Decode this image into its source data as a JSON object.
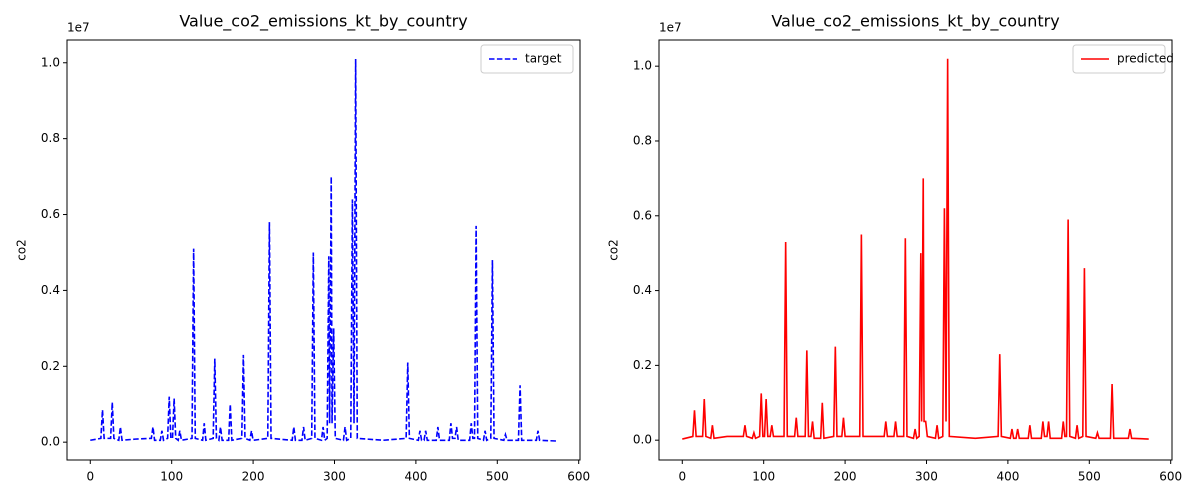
{
  "chart_data": [
    {
      "type": "line",
      "title": "Value_co2_emissions_kt_by_country",
      "ylabel": "co2",
      "y_offset_label": "1e7",
      "legend": "upper right",
      "x": [
        0,
        13,
        15,
        17,
        25,
        27,
        29,
        35,
        37,
        39,
        55,
        75,
        77,
        79,
        86,
        88,
        90,
        95,
        97,
        99,
        101,
        103,
        105,
        108,
        110,
        112,
        125,
        127,
        129,
        138,
        140,
        142,
        151,
        153,
        155,
        158,
        160,
        162,
        170,
        172,
        174,
        186,
        188,
        190,
        196,
        198,
        200,
        218,
        220,
        222,
        248,
        250,
        252,
        260,
        262,
        264,
        272,
        274,
        276,
        284,
        286,
        288,
        291,
        293,
        294,
        296,
        297,
        299,
        301,
        311,
        313,
        315,
        320,
        322,
        324,
        326,
        328,
        360,
        388,
        390,
        392,
        403,
        405,
        407,
        410,
        412,
        414,
        425,
        427,
        429,
        441,
        443,
        445,
        448,
        450,
        452,
        466,
        468,
        470,
        472,
        474,
        476,
        483,
        485,
        487,
        492,
        494,
        496,
        508,
        510,
        512,
        526,
        528,
        530,
        548,
        550,
        552,
        573
      ],
      "series": [
        {
          "name": "target",
          "color": "#0000ff",
          "dashed": true,
          "values": [
            0.005,
            0.01,
            0.085,
            0.01,
            0.01,
            0.105,
            0.01,
            0.005,
            0.04,
            0.005,
            0.008,
            0.01,
            0.04,
            0.005,
            0.005,
            0.03,
            0.005,
            0.01,
            0.12,
            0.01,
            0.01,
            0.115,
            0.01,
            0.005,
            0.03,
            0.005,
            0.01,
            0.51,
            0.01,
            0.005,
            0.05,
            0.005,
            0.01,
            0.22,
            0.01,
            0.005,
            0.04,
            0.005,
            0.005,
            0.1,
            0.005,
            0.01,
            0.23,
            0.01,
            0.005,
            0.03,
            0.005,
            0.01,
            0.58,
            0.01,
            0.005,
            0.04,
            0.005,
            0.005,
            0.04,
            0.005,
            0.01,
            0.5,
            0.01,
            0.005,
            0.04,
            0.005,
            0.01,
            0.49,
            0.05,
            0.7,
            0.05,
            0.3,
            0.01,
            0.005,
            0.04,
            0.005,
            0.01,
            0.64,
            0.05,
            1.01,
            0.01,
            0.005,
            0.01,
            0.21,
            0.01,
            0.005,
            0.03,
            0.005,
            0.005,
            0.03,
            0.005,
            0.005,
            0.04,
            0.005,
            0.005,
            0.05,
            0.01,
            0.01,
            0.04,
            0.005,
            0.005,
            0.05,
            0.01,
            0.01,
            0.57,
            0.01,
            0.005,
            0.03,
            0.005,
            0.01,
            0.48,
            0.01,
            0.005,
            0.02,
            0.005,
            0.005,
            0.15,
            0.005,
            0.005,
            0.03,
            0.005,
            0.003
          ]
        }
      ],
      "xlim": [
        -28.6,
        601.6
      ],
      "xticks": [
        0,
        100,
        200,
        300,
        400,
        500,
        600
      ],
      "ylim": [
        -0.047,
        1.06
      ],
      "yticks": [
        {
          "value": 0,
          "label": "0.0"
        },
        {
          "value": 0.2,
          "label": "0.2"
        },
        {
          "value": 0.4,
          "label": "0.4"
        },
        {
          "value": 0.6,
          "label": "0.6"
        },
        {
          "value": 0.8,
          "label": "0.8"
        },
        {
          "value": 1,
          "label": "1.0"
        }
      ]
    },
    {
      "type": "line",
      "title": "Value_co2_emissions_kt_by_country",
      "ylabel": "co2",
      "y_offset_label": "1e7",
      "legend": "upper right",
      "x": [
        0,
        13,
        15,
        17,
        25,
        27,
        29,
        35,
        37,
        39,
        55,
        75,
        77,
        79,
        86,
        88,
        90,
        95,
        97,
        99,
        101,
        103,
        105,
        108,
        110,
        112,
        125,
        127,
        129,
        138,
        140,
        142,
        151,
        153,
        155,
        158,
        160,
        162,
        170,
        172,
        174,
        186,
        188,
        190,
        196,
        198,
        200,
        218,
        220,
        222,
        248,
        250,
        252,
        260,
        262,
        264,
        272,
        274,
        276,
        284,
        286,
        288,
        291,
        293,
        294,
        296,
        297,
        299,
        301,
        311,
        313,
        315,
        320,
        322,
        324,
        326,
        328,
        360,
        388,
        390,
        392,
        403,
        405,
        407,
        410,
        412,
        414,
        425,
        427,
        429,
        441,
        443,
        445,
        448,
        450,
        452,
        466,
        468,
        470,
        472,
        474,
        476,
        483,
        485,
        487,
        492,
        494,
        496,
        508,
        510,
        512,
        526,
        528,
        530,
        548,
        550,
        552,
        573
      ],
      "series": [
        {
          "name": "predicted",
          "color": "#ff0000",
          "dashed": false,
          "values": [
            0.003,
            0.01,
            0.08,
            0.01,
            0.01,
            0.11,
            0.01,
            0.005,
            0.04,
            0.005,
            0.01,
            0.01,
            0.04,
            0.01,
            0.005,
            0.02,
            0.005,
            0.01,
            0.125,
            0.01,
            0.01,
            0.11,
            0.01,
            0.01,
            0.04,
            0.01,
            0.01,
            0.53,
            0.01,
            0.01,
            0.06,
            0.01,
            0.01,
            0.24,
            0.01,
            0.01,
            0.05,
            0.005,
            0.005,
            0.1,
            0.005,
            0.01,
            0.25,
            0.01,
            0.01,
            0.06,
            0.01,
            0.01,
            0.55,
            0.01,
            0.01,
            0.05,
            0.01,
            0.01,
            0.05,
            0.01,
            0.01,
            0.54,
            0.01,
            0.005,
            0.03,
            0.005,
            0.01,
            0.5,
            0.05,
            0.7,
            0.05,
            0.05,
            0.01,
            0.005,
            0.04,
            0.005,
            0.01,
            0.62,
            0.05,
            1.02,
            0.01,
            0.005,
            0.01,
            0.23,
            0.01,
            0.005,
            0.03,
            0.005,
            0.005,
            0.03,
            0.005,
            0.005,
            0.04,
            0.005,
            0.005,
            0.05,
            0.01,
            0.01,
            0.05,
            0.005,
            0.005,
            0.05,
            0.01,
            0.01,
            0.59,
            0.01,
            0.005,
            0.04,
            0.005,
            0.01,
            0.46,
            0.01,
            0.005,
            0.02,
            0.005,
            0.005,
            0.15,
            0.005,
            0.005,
            0.03,
            0.005,
            0.003
          ]
        }
      ],
      "xlim": [
        -28.6,
        601.6
      ],
      "xticks": [
        0,
        100,
        200,
        300,
        400,
        500,
        600
      ],
      "ylim": [
        -0.053,
        1.07
      ],
      "yticks": [
        {
          "value": 0,
          "label": "0.0"
        },
        {
          "value": 0.2,
          "label": "0.2"
        },
        {
          "value": 0.4,
          "label": "0.4"
        },
        {
          "value": 0.6,
          "label": "0.6"
        },
        {
          "value": 0.8,
          "label": "0.8"
        },
        {
          "value": 1,
          "label": "1.0"
        }
      ]
    }
  ]
}
